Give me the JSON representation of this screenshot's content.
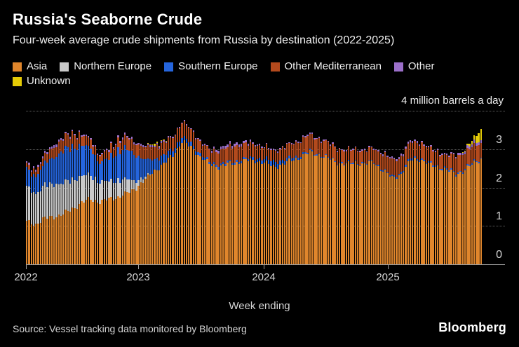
{
  "header": {
    "title": "Russia's Seaborne Crude",
    "subtitle": "Four-week average crude shipments from Russia by destination (2022-2025)"
  },
  "chart_data": {
    "type": "bar",
    "stacked": true,
    "title": "Russia's Seaborne Crude",
    "subtitle": "Four-week average crude shipments from Russia by destination (2022-2025)",
    "xlabel": "Week ending",
    "ylabel_top": "4 million barrels a day",
    "unit": "million barrels a day",
    "ylim": [
      0,
      4
    ],
    "grid": "horizontal-dotted",
    "legend_position": "top",
    "x_ticks": [
      "2022",
      "2023",
      "2024",
      "2025"
    ],
    "y_ticks": [
      {
        "value": 4,
        "label": ""
      },
      {
        "value": 3,
        "label": "3"
      },
      {
        "value": 2,
        "label": "2"
      },
      {
        "value": 1,
        "label": "1"
      },
      {
        "value": 0,
        "label": "0"
      }
    ],
    "series": [
      {
        "key": "asia",
        "label": "Asia",
        "color": "#E0862C"
      },
      {
        "key": "northern_europe",
        "label": "Northern Europe",
        "color": "#C9C9C9"
      },
      {
        "key": "southern_europe",
        "label": "Southern Europe",
        "color": "#2565DD"
      },
      {
        "key": "other_mediterranean",
        "label": "Other Mediterranean",
        "color": "#B34A1D"
      },
      {
        "key": "other",
        "label": "Other",
        "color": "#9B6FC9"
      },
      {
        "key": "unknown",
        "label": "Unknown",
        "color": "#E5CB06"
      }
    ],
    "points_columns": [
      "asia",
      "northern_europe",
      "southern_europe",
      "other_mediterranean",
      "other",
      "unknown"
    ],
    "points_interval_weeks": 4,
    "points_start": "2022-01",
    "points_end": "2025-11",
    "points": [
      [
        1.1,
        0.9,
        0.45,
        0.12,
        0.04,
        0
      ],
      [
        1.05,
        0.8,
        0.45,
        0.15,
        0.05,
        0
      ],
      [
        1.2,
        0.85,
        0.58,
        0.2,
        0.06,
        0
      ],
      [
        1.25,
        0.85,
        0.7,
        0.28,
        0.06,
        0
      ],
      [
        1.3,
        0.8,
        0.85,
        0.32,
        0.05,
        0
      ],
      [
        1.45,
        0.75,
        0.85,
        0.35,
        0.04,
        0
      ],
      [
        1.6,
        0.7,
        0.8,
        0.25,
        0.04,
        0
      ],
      [
        1.7,
        0.62,
        0.7,
        0.22,
        0.04,
        0
      ],
      [
        1.62,
        0.52,
        0.5,
        0.18,
        0.04,
        0
      ],
      [
        1.7,
        0.46,
        0.6,
        0.22,
        0.04,
        0
      ],
      [
        1.75,
        0.45,
        0.75,
        0.28,
        0.05,
        0
      ],
      [
        1.85,
        0.35,
        0.8,
        0.3,
        0.05,
        0
      ],
      [
        2.0,
        0.2,
        0.65,
        0.3,
        0.05,
        0
      ],
      [
        2.2,
        0.05,
        0.45,
        0.32,
        0.05,
        0
      ],
      [
        2.45,
        0,
        0.3,
        0.33,
        0.05,
        0.04
      ],
      [
        2.6,
        0,
        0.22,
        0.33,
        0.04,
        0.02
      ],
      [
        2.85,
        0,
        0.15,
        0.32,
        0.03,
        0
      ],
      [
        3.2,
        0,
        0.12,
        0.38,
        0.03,
        0
      ],
      [
        3.05,
        0,
        0.1,
        0.35,
        0.03,
        0
      ],
      [
        2.8,
        0,
        0.08,
        0.32,
        0.03,
        0
      ],
      [
        2.6,
        0,
        0.06,
        0.3,
        0.03,
        0
      ],
      [
        2.55,
        0,
        0.06,
        0.35,
        0.08,
        0
      ],
      [
        2.6,
        0,
        0.05,
        0.38,
        0.08,
        0
      ],
      [
        2.65,
        0,
        0.05,
        0.4,
        0.07,
        0
      ],
      [
        2.7,
        0,
        0.05,
        0.38,
        0.05,
        0
      ],
      [
        2.7,
        0,
        0.08,
        0.35,
        0.04,
        0
      ],
      [
        2.65,
        0,
        0.1,
        0.3,
        0.03,
        0
      ],
      [
        2.55,
        0,
        0.13,
        0.28,
        0.03,
        0
      ],
      [
        2.6,
        0,
        0.1,
        0.32,
        0.03,
        0
      ],
      [
        2.7,
        0,
        0.08,
        0.35,
        0.03,
        0
      ],
      [
        2.8,
        0,
        0.05,
        0.38,
        0.03,
        0
      ],
      [
        2.92,
        0,
        0.03,
        0.42,
        0.03,
        0
      ],
      [
        2.85,
        0,
        0.02,
        0.4,
        0.03,
        0
      ],
      [
        2.75,
        0,
        0.02,
        0.38,
        0.03,
        0
      ],
      [
        2.65,
        0,
        0.02,
        0.35,
        0.03,
        0
      ],
      [
        2.6,
        0,
        0.02,
        0.32,
        0.03,
        0
      ],
      [
        2.65,
        0,
        0.02,
        0.34,
        0.03,
        0
      ],
      [
        2.6,
        0,
        0.02,
        0.32,
        0.03,
        0
      ],
      [
        2.65,
        0,
        0.02,
        0.35,
        0.03,
        0
      ],
      [
        2.45,
        0,
        0.03,
        0.4,
        0.04,
        0
      ],
      [
        2.25,
        0,
        0.03,
        0.42,
        0.05,
        0
      ],
      [
        2.35,
        0,
        0.05,
        0.4,
        0.05,
        0
      ],
      [
        2.7,
        0,
        0.05,
        0.42,
        0.05,
        0
      ],
      [
        2.75,
        0,
        0.04,
        0.4,
        0.04,
        0
      ],
      [
        2.6,
        0,
        0.03,
        0.38,
        0.04,
        0
      ],
      [
        2.55,
        0,
        0.03,
        0.35,
        0.04,
        0
      ],
      [
        2.45,
        0,
        0.03,
        0.33,
        0.04,
        0
      ],
      [
        2.35,
        0,
        0.03,
        0.45,
        0.05,
        0
      ],
      [
        2.45,
        0,
        0.03,
        0.42,
        0.06,
        0.02
      ],
      [
        2.65,
        0,
        0.03,
        0.42,
        0.08,
        0.12
      ],
      [
        2.78,
        0,
        0.03,
        0.4,
        0.08,
        0.35
      ]
    ]
  },
  "footer": {
    "source": "Source: Vessel tracking data monitored by Bloomberg",
    "logo": "Bloomberg"
  }
}
